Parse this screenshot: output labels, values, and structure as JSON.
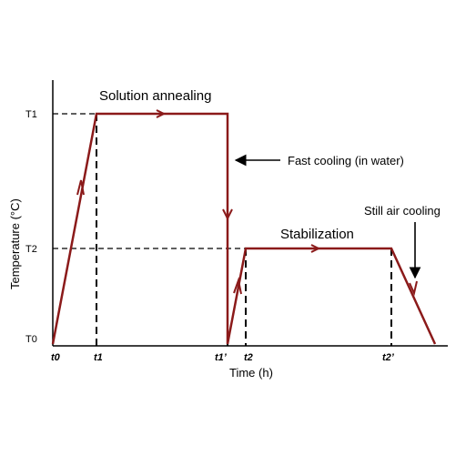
{
  "diagram": {
    "axis_titles": {
      "x": "Time (h)",
      "y": "Temperature (°C)"
    },
    "temperature_labels": {
      "t1_level": "T1",
      "t2_level": "T2",
      "t0_level": "T0"
    },
    "time_labels": {
      "t0": "t0",
      "t1": "t1",
      "t1_prime": "t1’",
      "t2": "t2",
      "t2_prime": "t2’"
    },
    "phase_labels": {
      "solution_annealing": "Solution annealing",
      "stabilization": "Stabilization"
    },
    "annotations": {
      "fast_cooling": "Fast cooling (in water)",
      "still_air_cooling": "Still air cooling"
    },
    "colors": {
      "curve": "#8b1a1a",
      "axes": "#000000",
      "guides": "#000000"
    }
  }
}
